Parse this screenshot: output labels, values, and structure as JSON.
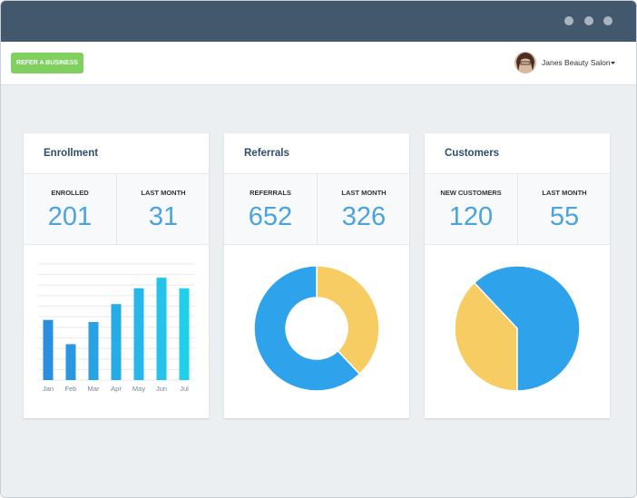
{
  "header": {
    "button": "REFER A BUSINESS",
    "user": "Janes Beauty Salon"
  },
  "cards": [
    {
      "stats": [
        {
          "label": "ENROLLED",
          "value": 201
        },
        {
          "label": "LAST MONTH",
          "value": 31
        }
      ]
    },
    {
      "stats": [
        {
          "label": "REFERRALS",
          "value": 652
        },
        {
          "label": "LAST MONTH",
          "value": 326
        }
      ]
    },
    {
      "stats": [
        {
          "label": "NEW CUSTOMERS",
          "value": 120
        },
        {
          "label": "LAST MONTH",
          "value": 55
        }
      ]
    }
  ],
  "chart_data": [
    {
      "type": "bar",
      "title": "Enrollment",
      "categories": [
        "Jan",
        "Feb",
        "Mar",
        "Apr",
        "May",
        "Jun",
        "Jul"
      ],
      "values": [
        5.7,
        3.4,
        5.5,
        7.2,
        8.7,
        9.7,
        8.7
      ],
      "colors": [
        "#2a8fdf",
        "#2998e1",
        "#28a2e3",
        "#27ade6",
        "#25b8e8",
        "#23c4ea",
        "#21cfec"
      ],
      "ylim": [
        0,
        11
      ],
      "yticks": [
        0,
        1,
        2,
        3,
        4,
        5,
        6,
        7,
        8,
        9,
        10,
        11
      ],
      "grid": true
    },
    {
      "type": "donut",
      "title": "Referrals",
      "values": [
        38,
        62
      ],
      "colors": [
        "#f7cd63",
        "#2ea3ec"
      ],
      "start_angle": 0
    },
    {
      "type": "pie",
      "title": "Customers",
      "values": [
        38,
        62
      ],
      "colors": [
        "#f7cd63",
        "#2ea3ec"
      ],
      "start_angle": 180
    }
  ]
}
